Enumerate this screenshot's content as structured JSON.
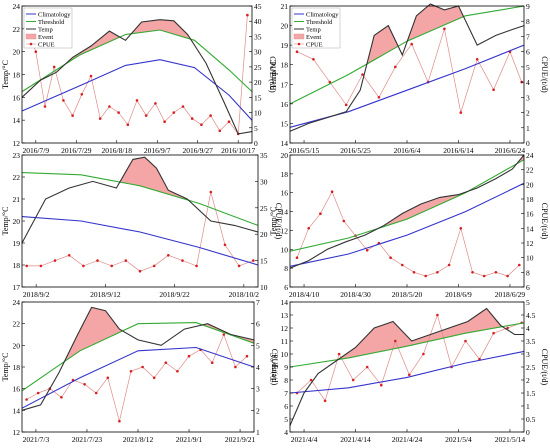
{
  "figure": {
    "colors": {
      "climatology": "#3333cc",
      "threshold": "#33aa33",
      "temp": "#333333",
      "event": "#f4a6a6",
      "cpue": "#e08a8a",
      "cpue_marker": "#d62020"
    },
    "legend_labels": [
      "Climatology",
      "Threshold",
      "Temp",
      "Event",
      "CPUE"
    ],
    "ylabel_left": "Temp/°C",
    "ylabel_right": "CPUE/(t/d)"
  },
  "chart_data": [
    {
      "type": "line",
      "panel": "2016 Jul–Oct",
      "show_legend": true,
      "xticks": [
        "2016/7/9",
        "2016/7/29",
        "2016/8/18",
        "2016/9/7",
        "2016/9/27",
        "2016/10/17"
      ],
      "yticks_left": [
        "12",
        "14",
        "16",
        "18",
        "20",
        "22",
        "24"
      ],
      "ylim_left": [
        12,
        24
      ],
      "yticks_right": [
        "0",
        "5",
        "10",
        "15",
        "20",
        "25",
        "30",
        "35",
        "40",
        "45"
      ],
      "ylim_right": [
        0,
        45
      ],
      "ylabel_left": "Temp/°C",
      "ylabel_right": "CPUE/(t/d)",
      "series": [
        {
          "name": "Climatology",
          "kind": "left",
          "x": [
            0,
            0.25,
            0.45,
            0.6,
            0.75,
            0.9,
            1
          ],
          "y": [
            14.8,
            17.0,
            18.8,
            19.3,
            18.6,
            16.2,
            14.0
          ]
        },
        {
          "name": "Threshold",
          "kind": "left",
          "x": [
            0,
            0.25,
            0.45,
            0.6,
            0.75,
            0.9,
            1
          ],
          "y": [
            16.5,
            19.7,
            21.5,
            21.9,
            21.0,
            18.4,
            16.5
          ]
        },
        {
          "name": "Temp",
          "kind": "left",
          "x": [
            0,
            0.08,
            0.15,
            0.22,
            0.3,
            0.38,
            0.45,
            0.52,
            0.6,
            0.66,
            0.72,
            0.8,
            0.88,
            0.94,
            1
          ],
          "y": [
            16,
            17.5,
            18.2,
            19.5,
            20.5,
            21.8,
            21.0,
            22.6,
            22.8,
            22.7,
            21.5,
            19.0,
            15.5,
            12.8,
            13.0
          ]
        },
        {
          "name": "CPUE",
          "kind": "right",
          "x": [
            0.02,
            0.06,
            0.1,
            0.14,
            0.18,
            0.22,
            0.26,
            0.3,
            0.34,
            0.38,
            0.42,
            0.46,
            0.5,
            0.54,
            0.58,
            0.62,
            0.66,
            0.7,
            0.74,
            0.78,
            0.82,
            0.86,
            0.9,
            0.94,
            0.98
          ],
          "y": [
            38,
            30,
            12,
            25,
            14,
            9,
            16,
            22,
            8,
            12,
            10,
            6,
            14,
            9,
            13,
            7,
            10,
            12,
            8,
            6,
            9,
            4,
            7,
            3,
            42
          ]
        }
      ]
    },
    {
      "type": "line",
      "panel": "2016 May–Jun",
      "show_legend": true,
      "xticks": [
        "2016/5/15",
        "2016/5/25",
        "2016/6/4",
        "2016/6/14",
        "2016/6/24"
      ],
      "yticks_left": [
        "14",
        "15",
        "16",
        "17",
        "18",
        "19",
        "20",
        "21"
      ],
      "ylim_left": [
        14,
        21
      ],
      "yticks_right": [
        "0",
        "1",
        "2",
        "3",
        "4",
        "5",
        "6",
        "7",
        "8",
        "9"
      ],
      "ylim_right": [
        0,
        9
      ],
      "ylabel_left": "Temp/°C",
      "ylabel_right": "CPUE/(t/d)",
      "series": [
        {
          "name": "Climatology",
          "kind": "left",
          "x": [
            0,
            0.25,
            0.5,
            0.75,
            1
          ],
          "y": [
            14.8,
            15.6,
            16.7,
            17.8,
            19.0
          ]
        },
        {
          "name": "Threshold",
          "kind": "left",
          "x": [
            0,
            0.25,
            0.5,
            0.75,
            1
          ],
          "y": [
            16.0,
            17.5,
            19.2,
            20.5,
            21.0
          ]
        },
        {
          "name": "Temp",
          "kind": "left",
          "x": [
            0,
            0.08,
            0.16,
            0.24,
            0.3,
            0.36,
            0.42,
            0.48,
            0.54,
            0.6,
            0.66,
            0.72,
            0.8,
            0.88,
            0.95,
            1
          ],
          "y": [
            14.6,
            15.0,
            15.3,
            15.6,
            16.7,
            19.5,
            20.0,
            18.5,
            20.5,
            21.1,
            20.8,
            21.0,
            19.0,
            19.5,
            19.8,
            20.0
          ]
        },
        {
          "name": "CPUE",
          "kind": "right",
          "x": [
            0.03,
            0.1,
            0.17,
            0.24,
            0.31,
            0.38,
            0.45,
            0.52,
            0.59,
            0.66,
            0.73,
            0.8,
            0.87,
            0.94,
            0.99
          ],
          "y": [
            6.0,
            5.5,
            4.0,
            2.5,
            4.5,
            3.0,
            5.0,
            6.5,
            4.0,
            7.5,
            2.0,
            5.5,
            3.5,
            6.0,
            4.0
          ]
        }
      ]
    },
    {
      "type": "line",
      "panel": "2018 Aug–Oct",
      "show_legend": false,
      "xticks": [
        "2018/9/2",
        "2018/9/12",
        "2018/9/22",
        "2018/10/2"
      ],
      "yticks_left": [
        "17",
        "18",
        "19",
        "20",
        "21",
        "22",
        "23"
      ],
      "ylim_left": [
        17,
        23
      ],
      "yticks_right": [
        "10",
        "15",
        "20",
        "25",
        "30",
        "35"
      ],
      "ylim_right": [
        10,
        35
      ],
      "ylabel_left": "Temp/°C",
      "ylabel_right": "CPUE/(t/d)",
      "series": [
        {
          "name": "Climatology",
          "kind": "left",
          "x": [
            0,
            0.25,
            0.5,
            0.75,
            1
          ],
          "y": [
            20.2,
            20.0,
            19.5,
            18.8,
            18.0
          ]
        },
        {
          "name": "Threshold",
          "kind": "left",
          "x": [
            0,
            0.25,
            0.5,
            0.75,
            1
          ],
          "y": [
            22.2,
            22.1,
            21.6,
            20.8,
            19.8
          ]
        },
        {
          "name": "Temp",
          "kind": "left",
          "x": [
            0,
            0.1,
            0.2,
            0.3,
            0.4,
            0.47,
            0.52,
            0.57,
            0.62,
            0.7,
            0.8,
            0.9,
            1
          ],
          "y": [
            19.0,
            21.0,
            21.5,
            21.8,
            21.5,
            22.8,
            22.9,
            22.4,
            21.4,
            21.0,
            20.0,
            19.8,
            19.5
          ]
        },
        {
          "name": "CPUE",
          "kind": "right",
          "x": [
            0.02,
            0.08,
            0.14,
            0.2,
            0.26,
            0.32,
            0.38,
            0.44,
            0.5,
            0.56,
            0.62,
            0.68,
            0.74,
            0.8,
            0.86,
            0.92,
            0.98
          ],
          "y": [
            14,
            14,
            15,
            16,
            14,
            15,
            14,
            15,
            13,
            14,
            16,
            15,
            14,
            28,
            18,
            14,
            15
          ]
        }
      ]
    },
    {
      "type": "line",
      "panel": "2018 Apr–Jul",
      "show_legend": false,
      "xticks": [
        "2018/4/10",
        "2018/4/30",
        "2018/5/20",
        "2018/6/9",
        "2018/6/29"
      ],
      "yticks_left": [
        "6",
        "8",
        "10",
        "12",
        "14",
        "16",
        "18",
        "20"
      ],
      "ylim_left": [
        6,
        20
      ],
      "yticks_right": [
        "6",
        "8",
        "10",
        "12",
        "14",
        "16",
        "18",
        "20",
        "22",
        "24"
      ],
      "ylim_right": [
        6,
        24
      ],
      "ylabel_left": "Temp/°C",
      "ylabel_right": "CPUE/(t/d)",
      "series": [
        {
          "name": "Climatology",
          "kind": "left",
          "x": [
            0,
            0.25,
            0.5,
            0.75,
            1
          ],
          "y": [
            8.2,
            9.5,
            11.5,
            14.0,
            17.0
          ]
        },
        {
          "name": "Threshold",
          "kind": "left",
          "x": [
            0,
            0.25,
            0.5,
            0.75,
            1
          ],
          "y": [
            9.8,
            11.2,
            13.2,
            16.0,
            19.5
          ]
        },
        {
          "name": "Temp",
          "kind": "left",
          "x": [
            0,
            0.08,
            0.16,
            0.24,
            0.32,
            0.4,
            0.48,
            0.56,
            0.64,
            0.72,
            0.8,
            0.88,
            0.95,
            1
          ],
          "y": [
            8.0,
            8.8,
            10.0,
            10.8,
            11.5,
            12.5,
            13.8,
            14.8,
            15.5,
            15.8,
            16.5,
            17.5,
            18.5,
            20.0
          ]
        },
        {
          "name": "CPUE",
          "kind": "right",
          "x": [
            0.03,
            0.08,
            0.13,
            0.18,
            0.23,
            0.28,
            0.33,
            0.38,
            0.43,
            0.48,
            0.53,
            0.58,
            0.63,
            0.68,
            0.73,
            0.78,
            0.83,
            0.88,
            0.93,
            0.98
          ],
          "y": [
            10,
            14,
            16,
            19,
            15,
            13,
            11,
            12,
            10,
            9,
            8,
            7.5,
            8,
            9,
            14,
            8,
            7.5,
            8,
            7.5,
            9
          ]
        }
      ]
    },
    {
      "type": "line",
      "panel": "2021 Jul–Sep",
      "show_legend": false,
      "xticks": [
        "2021/7/3",
        "2021/7/23",
        "2021/8/12",
        "2021/9/1",
        "2021/9/21"
      ],
      "yticks_left": [
        "12",
        "14",
        "16",
        "18",
        "20",
        "22",
        "24"
      ],
      "ylim_left": [
        12,
        24
      ],
      "yticks_right": [
        "1",
        "2",
        "3",
        "4",
        "5",
        "6",
        "7"
      ],
      "ylim_right": [
        1,
        7
      ],
      "ylabel_left": "Temp/°C",
      "ylabel_right": "CPUE/(t/d)",
      "series": [
        {
          "name": "Climatology",
          "kind": "left",
          "x": [
            0,
            0.25,
            0.5,
            0.75,
            1
          ],
          "y": [
            14.2,
            17.0,
            19.5,
            19.8,
            18.0
          ]
        },
        {
          "name": "Threshold",
          "kind": "left",
          "x": [
            0,
            0.25,
            0.5,
            0.75,
            1
          ],
          "y": [
            15.8,
            19.5,
            22.0,
            22.1,
            20.2
          ]
        },
        {
          "name": "Temp",
          "kind": "left",
          "x": [
            0,
            0.08,
            0.16,
            0.24,
            0.3,
            0.36,
            0.42,
            0.5,
            0.6,
            0.7,
            0.8,
            0.9,
            1
          ],
          "y": [
            14.0,
            14.5,
            17.5,
            21.0,
            23.5,
            23.2,
            21.5,
            20.5,
            20.0,
            21.5,
            22.0,
            21.0,
            20.5
          ]
        },
        {
          "name": "CPUE",
          "kind": "right",
          "x": [
            0.02,
            0.07,
            0.12,
            0.17,
            0.22,
            0.27,
            0.32,
            0.37,
            0.42,
            0.47,
            0.52,
            0.57,
            0.62,
            0.67,
            0.72,
            0.77,
            0.82,
            0.87,
            0.92,
            0.97
          ],
          "y": [
            2.5,
            2.8,
            3.0,
            2.6,
            3.4,
            3.2,
            2.8,
            3.5,
            1.5,
            3.8,
            4.0,
            3.5,
            4.2,
            3.8,
            4.5,
            4.8,
            4.2,
            5.5,
            4.0,
            4.5
          ]
        }
      ]
    },
    {
      "type": "line",
      "panel": "2021 Apr–May",
      "show_legend": false,
      "xticks": [
        "2021/4/4",
        "2021/4/14",
        "2021/4/24",
        "2021/5/4",
        "2021/5/14"
      ],
      "yticks_left": [
        "4",
        "5",
        "6",
        "7",
        "8",
        "9",
        "10",
        "11",
        "12",
        "13",
        "14"
      ],
      "ylim_left": [
        4,
        14
      ],
      "yticks_right": [
        "0",
        "0.5",
        "1",
        "1.5",
        "2",
        "2.5",
        "3",
        "3.5",
        "4",
        "4.5",
        "5"
      ],
      "ylim_right": [
        0,
        5
      ],
      "ylabel_left": "Temp/°C",
      "ylabel_right": "CPUE/(t/d)",
      "series": [
        {
          "name": "Climatology",
          "kind": "left",
          "x": [
            0,
            0.25,
            0.5,
            0.75,
            1
          ],
          "y": [
            7.0,
            7.4,
            8.2,
            9.3,
            10.2
          ]
        },
        {
          "name": "Threshold",
          "kind": "left",
          "x": [
            0,
            0.25,
            0.5,
            0.75,
            1
          ],
          "y": [
            9.0,
            9.7,
            10.6,
            11.6,
            12.4
          ]
        },
        {
          "name": "Temp",
          "kind": "left",
          "x": [
            0,
            0.06,
            0.12,
            0.2,
            0.28,
            0.36,
            0.44,
            0.52,
            0.6,
            0.68,
            0.76,
            0.84,
            0.9,
            0.96,
            1
          ],
          "y": [
            4.5,
            7.0,
            8.5,
            9.5,
            10.5,
            12.0,
            12.5,
            11.0,
            11.5,
            12.0,
            12.5,
            13.5,
            12.2,
            11.5,
            11.5
          ]
        },
        {
          "name": "CPUE",
          "kind": "right",
          "x": [
            0.03,
            0.09,
            0.15,
            0.21,
            0.27,
            0.33,
            0.39,
            0.45,
            0.51,
            0.57,
            0.63,
            0.69,
            0.75,
            0.81,
            0.87,
            0.93,
            0.99
          ],
          "y": [
            1.5,
            2.0,
            1.2,
            3.0,
            2.0,
            2.5,
            1.8,
            3.5,
            2.2,
            3.0,
            4.5,
            2.5,
            3.5,
            2.8,
            3.8,
            4.0,
            4.2
          ]
        }
      ]
    }
  ]
}
